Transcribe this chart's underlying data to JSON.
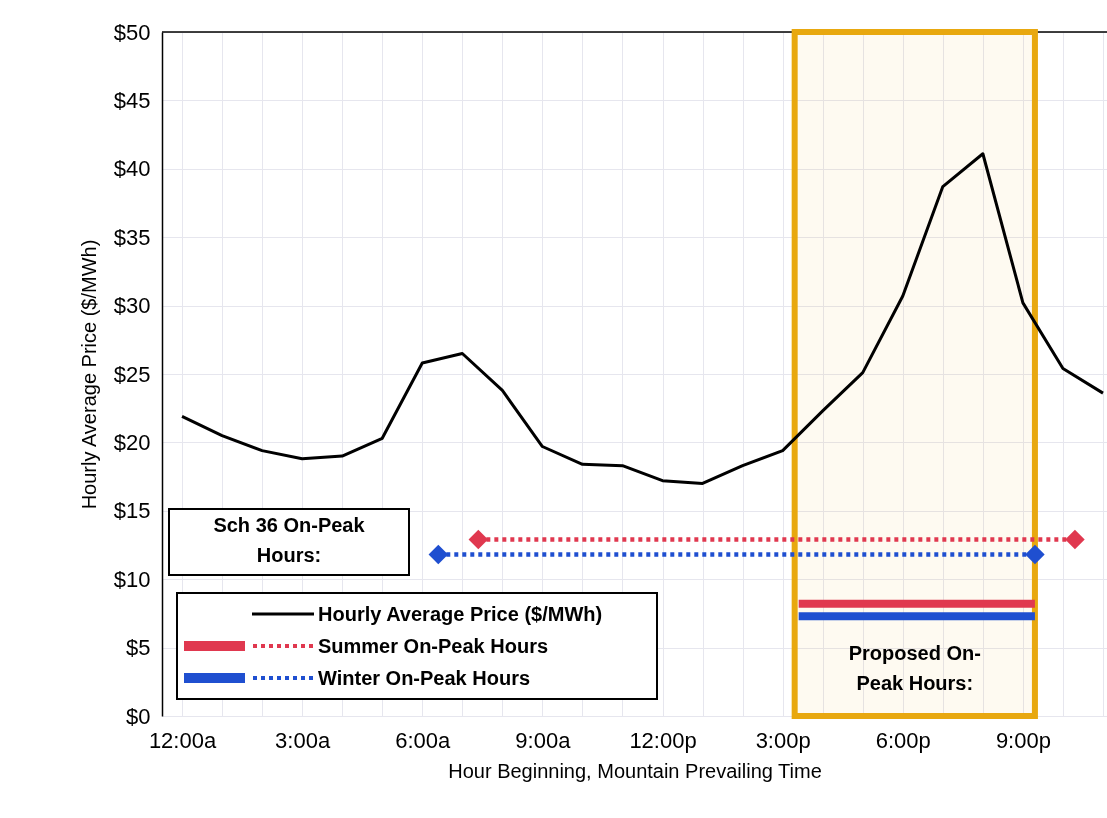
{
  "chart_data": {
    "type": "line",
    "xlabel": "Hour Beginning, Mountain Prevailing Time",
    "ylabel": "Hourly Average Price ($/MWh)",
    "xlim": [
      -0.5,
      23.1
    ],
    "ylim": [
      0,
      50
    ],
    "xticks": [
      {
        "value": 0,
        "label": "12:00a"
      },
      {
        "value": 1,
        "label": null
      },
      {
        "value": 2,
        "label": null
      },
      {
        "value": 3,
        "label": "3:00a"
      },
      {
        "value": 4,
        "label": null
      },
      {
        "value": 5,
        "label": null
      },
      {
        "value": 6,
        "label": "6:00a"
      },
      {
        "value": 7,
        "label": null
      },
      {
        "value": 8,
        "label": null
      },
      {
        "value": 9,
        "label": "9:00a"
      },
      {
        "value": 10,
        "label": null
      },
      {
        "value": 11,
        "label": null
      },
      {
        "value": 12,
        "label": "12:00p"
      },
      {
        "value": 13,
        "label": null
      },
      {
        "value": 14,
        "label": null
      },
      {
        "value": 15,
        "label": "3:00p"
      },
      {
        "value": 16,
        "label": null
      },
      {
        "value": 17,
        "label": null
      },
      {
        "value": 18,
        "label": "6:00p"
      },
      {
        "value": 19,
        "label": null
      },
      {
        "value": 20,
        "label": null
      },
      {
        "value": 21,
        "label": "9:00p"
      },
      {
        "value": 22,
        "label": null
      },
      {
        "value": 23,
        "label": null
      }
    ],
    "yticks": [
      {
        "value": 0,
        "label": "$0"
      },
      {
        "value": 5,
        "label": "$5"
      },
      {
        "value": 10,
        "label": "$10"
      },
      {
        "value": 15,
        "label": "$15"
      },
      {
        "value": 20,
        "label": "$20"
      },
      {
        "value": 25,
        "label": "$25"
      },
      {
        "value": 30,
        "label": "$30"
      },
      {
        "value": 35,
        "label": "$35"
      },
      {
        "value": 40,
        "label": "$40"
      },
      {
        "value": 45,
        "label": "$45"
      },
      {
        "value": 50,
        "label": "$50"
      }
    ],
    "grid": true,
    "legend": "bottom left",
    "series": [
      {
        "name": "Hourly Average Price ($/MWh)",
        "color": "#000000",
        "x": [
          0,
          1,
          2,
          3,
          4,
          5,
          6,
          7,
          8,
          9,
          10,
          11,
          12,
          13,
          14,
          15,
          16,
          17,
          18,
          19,
          20,
          21,
          22,
          23
        ],
        "values": [
          21.9,
          20.5,
          19.4,
          18.8,
          19.0,
          20.3,
          25.8,
          26.5,
          23.8,
          19.7,
          18.4,
          18.3,
          17.2,
          17.0,
          18.3,
          19.4,
          22.3,
          25.1,
          30.7,
          38.7,
          41.1,
          30.2,
          25.4,
          23.6
        ],
        "line_style": "solid",
        "marker": "none"
      },
      {
        "color": "#e0384f",
        "x": [
          15.4,
          21.3
        ],
        "values": [
          8.2,
          8.2
        ],
        "line_style": "solid",
        "marker": "none"
      },
      {
        "name": "Summer On-Peak Hours",
        "color": "#e0384f",
        "x": [
          7.4,
          22.3
        ],
        "values": [
          12.9,
          12.9
        ],
        "line_style": "dotted",
        "marker": "diamond"
      },
      {
        "color": "#1f4fd0",
        "x": [
          15.4,
          21.3
        ],
        "values": [
          7.3,
          7.3
        ],
        "line_style": "solid",
        "marker": "none"
      },
      {
        "name": "Winter On-Peak Hours",
        "color": "#1f4fd0",
        "x": [
          6.4,
          21.3
        ],
        "values": [
          11.8,
          11.8
        ],
        "line_style": "dotted",
        "marker": "diamond"
      }
    ],
    "bands": [
      {
        "axis": "x",
        "from": 15.3,
        "to": 21.3,
        "label": "Proposed On-\nPeak Hours:",
        "color": "#e8a80f"
      }
    ],
    "annotations": [
      "Sch 36 On-Peak\nHours:"
    ]
  }
}
